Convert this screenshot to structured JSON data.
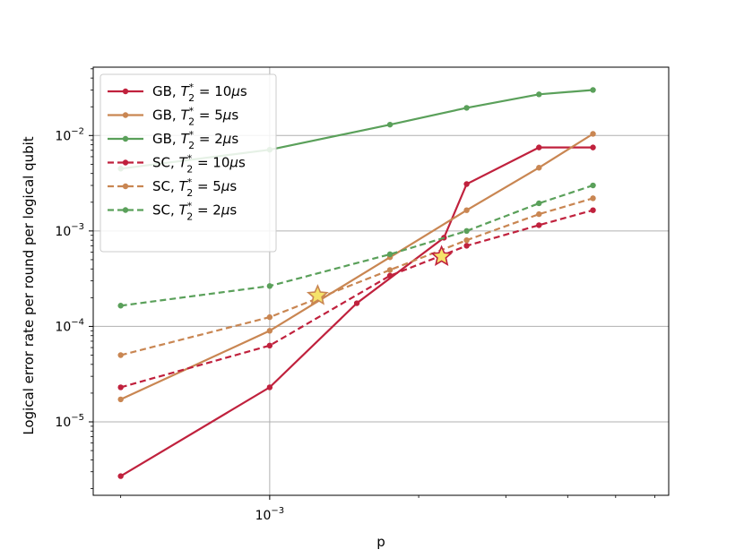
{
  "chart_data": {
    "type": "line",
    "xlabel": "p",
    "ylabel": "Logical error rate per round per logical qubit",
    "xscale": "log",
    "yscale": "log",
    "xlim": [
      0.00044,
      0.0064
    ],
    "ylim": [
      1.7e-06,
      0.052
    ],
    "x_ticks": [
      {
        "value": 0.001,
        "base": "10",
        "exp": "−3"
      }
    ],
    "y_ticks": [
      {
        "value": 1e-05,
        "base": "10",
        "exp": "−5"
      },
      {
        "value": 0.0001,
        "base": "10",
        "exp": "−4"
      },
      {
        "value": 0.001,
        "base": "10",
        "exp": "−3"
      },
      {
        "value": 0.01,
        "base": "10",
        "exp": "−2"
      }
    ],
    "grid": true,
    "legend_position": "upper-left",
    "x": [
      0.0005,
      0.001,
      0.002,
      0.003,
      0.004,
      0.005,
      0.006
    ],
    "series": [
      {
        "code": "GB",
        "t2": "10",
        "color": "#c0213d",
        "style": "solid",
        "values": [
          2.7e-06,
          2.3e-05,
          0.000175,
          0.00085,
          0.0031,
          0.0075,
          0.0075
        ],
        "x": [
          0.0005,
          0.001,
          0.0015,
          0.00225,
          0.0025,
          0.0035,
          0.0045
        ]
      },
      {
        "code": "GB",
        "t2": "5",
        "color": "#c98652",
        "style": "solid",
        "values": [
          1.72e-05,
          9e-05,
          0.00053,
          0.00165,
          0.0046,
          0.0104
        ],
        "x": [
          0.0005,
          0.001,
          0.00175,
          0.0025,
          0.0035,
          0.0045
        ]
      },
      {
        "code": "GB",
        "t2": "2",
        "color": "#5aa05a",
        "style": "solid",
        "values": [
          0.0045,
          0.0071,
          0.013,
          0.0195,
          0.027,
          0.03
        ],
        "x": [
          0.0005,
          0.001,
          0.00175,
          0.0025,
          0.0035,
          0.0045
        ]
      },
      {
        "code": "SC",
        "t2": "10",
        "color": "#c0213d",
        "style": "dashed",
        "values": [
          2.3e-05,
          6.3e-05,
          0.00034,
          0.0007,
          0.00115,
          0.00165
        ],
        "x": [
          0.0005,
          0.001,
          0.00175,
          0.0025,
          0.0035,
          0.0045
        ]
      },
      {
        "code": "SC",
        "t2": "5",
        "color": "#c98652",
        "style": "dashed",
        "values": [
          5e-05,
          0.000125,
          0.00039,
          0.0008,
          0.0015,
          0.0022
        ],
        "x": [
          0.0005,
          0.001,
          0.00175,
          0.0025,
          0.0035,
          0.0045
        ]
      },
      {
        "code": "SC",
        "t2": "2",
        "color": "#5aa05a",
        "style": "dashed",
        "values": [
          0.000165,
          0.000265,
          0.00057,
          0.001,
          0.00195,
          0.003
        ],
        "x": [
          0.0005,
          0.001,
          0.00175,
          0.0025,
          0.0035,
          0.0045
        ]
      }
    ],
    "legend_entries": [
      {
        "code": "GB,",
        "t2_value": "10",
        "unit": "μs"
      },
      {
        "code": "GB,",
        "t2_value": "5",
        "unit": "μs"
      },
      {
        "code": "GB,",
        "t2_value": "2",
        "unit": "μs"
      },
      {
        "code": "SC,",
        "t2_value": "10",
        "unit": "μs"
      },
      {
        "code": "SC,",
        "t2_value": "5",
        "unit": "μs"
      },
      {
        "code": "SC,",
        "t2_value": "2",
        "unit": "μs"
      }
    ],
    "markers": [
      {
        "x": 0.00125,
        "y": 0.00021,
        "fill": "#f5e36a",
        "edge": "#c98652"
      },
      {
        "x": 0.002225,
        "y": 0.00054,
        "fill": "#f5e36a",
        "edge": "#c0213d"
      }
    ]
  }
}
